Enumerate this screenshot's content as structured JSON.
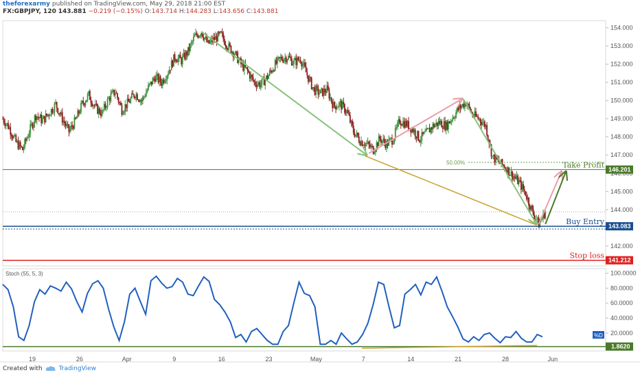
{
  "header": {
    "author": "theforexarmy",
    "published_text": "published on TradingView.com, May 29, 2018 21:00 EST",
    "symbol": "FX:GBPJPY, 120",
    "last": "143.881",
    "change": "−0.219 (−0.15%)",
    "o_label": "O:",
    "o_value": "143.714",
    "h_label": "H:",
    "h_value": "144.283",
    "l_label": "L:",
    "l_value": "143.656",
    "c_label": "C:",
    "c_value": "143.881"
  },
  "footer": {
    "created_with": "Created with",
    "brand": "TradingView"
  },
  "colors": {
    "up": "#3d8f3d",
    "down": "#8b1a1a",
    "green_arrow": "#86c27a",
    "pink_arrow": "#e8a0a8",
    "gold": "#c8a02a",
    "take_profit": "#4a7a2a",
    "buy_entry": "#1a4f8f",
    "stop_loss": "#e02020",
    "stoch_line": "#1f5fbf",
    "axis_text": "#555555"
  },
  "chart_data": [
    {
      "type": "line",
      "subtype": "candlestick",
      "symbol": "FX:GBPJPY",
      "interval": "120",
      "x_ticks": [
        "19",
        "26",
        "Apr",
        "9",
        "16",
        "23",
        "May",
        "7",
        "14",
        "21",
        "28",
        "Jun"
      ],
      "y_ticks": [
        "154.000",
        "153.000",
        "152.000",
        "151.000",
        "150.000",
        "149.000",
        "148.000",
        "147.000",
        "146.000",
        "145.000",
        "144.000",
        "143.000",
        "142.000"
      ],
      "ylim": [
        140.9,
        154.4
      ],
      "close_path": [
        [
          0,
          149.0
        ],
        [
          0.9,
          148.5
        ],
        [
          1.8,
          147.7
        ],
        [
          2.7,
          147.3
        ],
        [
          3.6,
          148.3
        ],
        [
          4.5,
          149.2
        ],
        [
          5.4,
          148.9
        ],
        [
          6.3,
          149.3
        ],
        [
          7.2,
          149.8
        ],
        [
          8.1,
          149.0
        ],
        [
          9.0,
          148.3
        ],
        [
          9.9,
          148.9
        ],
        [
          10.8,
          149.8
        ],
        [
          11.7,
          150.3
        ],
        [
          12.6,
          149.6
        ],
        [
          13.5,
          149.3
        ],
        [
          14.4,
          150.1
        ],
        [
          15.3,
          150.5
        ],
        [
          16.2,
          149.5
        ],
        [
          17.1,
          149.9
        ],
        [
          18.0,
          150.4
        ],
        [
          18.9,
          150.0
        ],
        [
          19.8,
          150.7
        ],
        [
          20.7,
          151.3
        ],
        [
          21.6,
          151.0
        ],
        [
          22.5,
          151.6
        ],
        [
          23.4,
          152.4
        ],
        [
          24.3,
          152.2
        ],
        [
          25.2,
          152.7
        ],
        [
          26.1,
          153.5
        ],
        [
          27.0,
          153.8
        ],
        [
          27.9,
          153.1
        ],
        [
          28.8,
          153.4
        ],
        [
          29.7,
          153.6
        ],
        [
          30.6,
          153.0
        ],
        [
          31.5,
          152.6
        ],
        [
          32.4,
          152.0
        ],
        [
          33.3,
          151.6
        ],
        [
          34.2,
          151.0
        ],
        [
          35.1,
          150.9
        ],
        [
          36.0,
          151.3
        ],
        [
          36.9,
          151.9
        ],
        [
          37.8,
          152.3
        ],
        [
          38.7,
          152.4
        ],
        [
          39.6,
          152.1
        ],
        [
          40.5,
          152.3
        ],
        [
          41.4,
          151.4
        ],
        [
          42.3,
          150.6
        ],
        [
          43.2,
          150.4
        ],
        [
          44.1,
          150.6
        ],
        [
          45.0,
          149.7
        ],
        [
          45.9,
          149.8
        ],
        [
          46.8,
          149.4
        ],
        [
          47.7,
          148.3
        ],
        [
          48.6,
          147.8
        ],
        [
          49.5,
          147.6
        ],
        [
          50.4,
          147.3
        ],
        [
          51.3,
          147.9
        ],
        [
          52.2,
          147.6
        ],
        [
          53.1,
          147.9
        ],
        [
          54.0,
          148.9
        ],
        [
          54.9,
          148.7
        ],
        [
          55.8,
          148.4
        ],
        [
          56.7,
          147.9
        ],
        [
          57.6,
          148.2
        ],
        [
          58.5,
          148.6
        ],
        [
          59.4,
          148.8
        ],
        [
          60.3,
          148.6
        ],
        [
          61.2,
          149.1
        ],
        [
          62.1,
          149.6
        ],
        [
          63.0,
          149.9
        ],
        [
          63.9,
          149.2
        ],
        [
          64.8,
          149.0
        ],
        [
          65.7,
          148.6
        ],
        [
          66.6,
          146.9
        ],
        [
          67.5,
          146.6
        ],
        [
          68.4,
          146.3
        ],
        [
          69.3,
          145.9
        ],
        [
          70.2,
          145.5
        ],
        [
          71.1,
          144.9
        ],
        [
          72.0,
          143.9
        ],
        [
          72.9,
          143.2
        ],
        [
          73.8,
          143.9
        ]
      ],
      "x_index_span": [
        0,
        82
      ],
      "drawings": [
        {
          "kind": "arrow",
          "color": "green_arrow",
          "from": [
            27.0,
            153.8
          ],
          "to": [
            49.5,
            147.0
          ]
        },
        {
          "kind": "arrow",
          "color": "pink_arrow",
          "from": [
            49.8,
            147.1
          ],
          "to": [
            62.5,
            150.1
          ]
        },
        {
          "kind": "arrow",
          "color": "green_arrow",
          "from": [
            62.6,
            150.1
          ],
          "to": [
            72.6,
            143.2
          ]
        },
        {
          "kind": "arrow",
          "color": "pink_arrow",
          "from": [
            72.9,
            143.2
          ],
          "to": [
            76.0,
            146.1
          ]
        },
        {
          "kind": "arrow",
          "color": "take_profit",
          "from": [
            73.8,
            143.2
          ],
          "to": [
            76.6,
            146.1
          ]
        },
        {
          "kind": "line",
          "color": "gold",
          "from": [
            49.3,
            146.95
          ],
          "to": [
            72.6,
            143.15
          ]
        }
      ],
      "levels": [
        {
          "label": "Take Profit",
          "value": 146.201,
          "value_text": "146.201",
          "color": "take_profit"
        },
        {
          "label": "Buy Entry",
          "value": 143.083,
          "value_text": "143.083",
          "color": "buy_entry"
        },
        {
          "label": "Stop loss",
          "value": 141.212,
          "value_text": "141.212",
          "color": "stop_loss"
        }
      ],
      "fib_label": "50.00%",
      "fib_value": 146.6,
      "last_price_line": 143.881
    },
    {
      "type": "line",
      "title": "Stoch (55, 5, 3)",
      "y_ticks": [
        "100.0000",
        "80.0000",
        "60.0000",
        "40.0000",
        "20.0000"
      ],
      "ylim": [
        -4,
        106
      ],
      "series": [
        {
          "name": "%D",
          "values": [
            85,
            78,
            55,
            15,
            10,
            30,
            62,
            78,
            72,
            83,
            80,
            76,
            88,
            79,
            62,
            48,
            73,
            86,
            90,
            80,
            52,
            28,
            10,
            35,
            72,
            80,
            62,
            45,
            90,
            96,
            87,
            80,
            82,
            93,
            88,
            72,
            70,
            83,
            95,
            89,
            65,
            58,
            48,
            35,
            14,
            18,
            8,
            22,
            26,
            18,
            10,
            5,
            5,
            22,
            30,
            60,
            88,
            73,
            70,
            55,
            5,
            5,
            10,
            5,
            20,
            12,
            5,
            8,
            18,
            33,
            58,
            88,
            85,
            55,
            27,
            30,
            72,
            78,
            85,
            71,
            88,
            85,
            95,
            76,
            55,
            42,
            28,
            12,
            8,
            15,
            10,
            18,
            20,
            13,
            7,
            15,
            14,
            22,
            13,
            8,
            8,
            18,
            15
          ]
        }
      ],
      "level_value": 1.862,
      "level_text": "1.8620",
      "series_label": "%D"
    }
  ]
}
